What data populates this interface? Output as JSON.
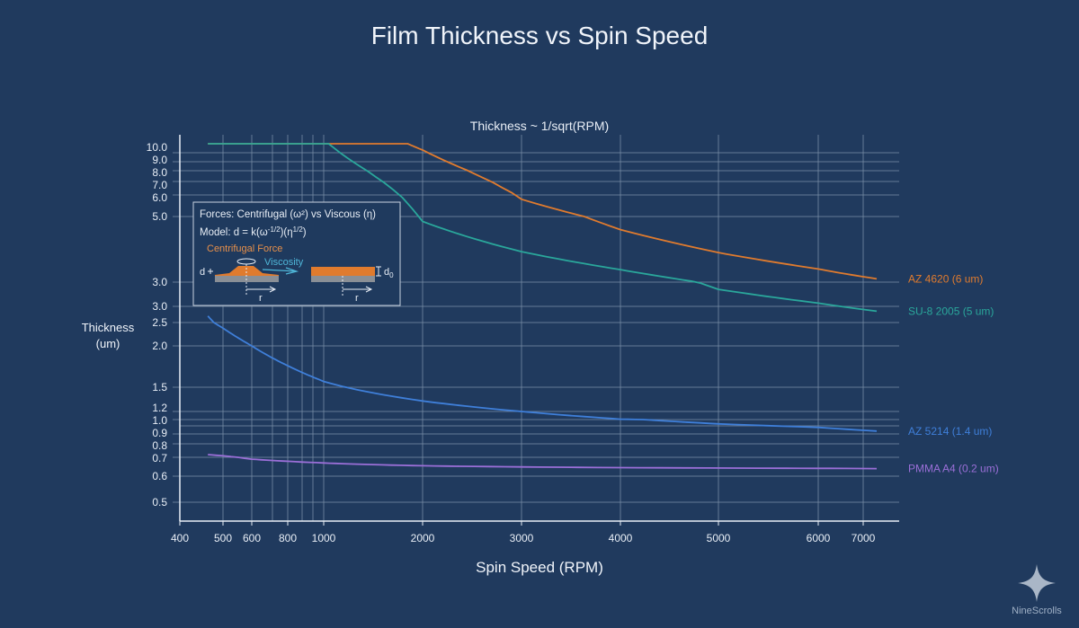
{
  "chart_data": {
    "type": "line",
    "title": "Film Thickness vs Spin Speed",
    "subtitle": "Thickness ~ 1/sqrt(RPM)",
    "xlabel": "Spin Speed (RPM)",
    "ylabel": "Thickness (um)",
    "x_scale": "log",
    "xlim": [
      400,
      7800
    ],
    "x_ticks": [
      "400",
      "500",
      "600",
      "800",
      "1000",
      "2000",
      "3000",
      "4000",
      "5000",
      "6000",
      "7000"
    ],
    "y_ticks": [
      "10.0",
      "9.0",
      "8.0",
      "7.0",
      "6.0",
      "5.0",
      "3.0",
      "3.0",
      "2.5",
      "2.0",
      "1.5",
      "1.2",
      "1.0",
      "0.9",
      "0.8",
      "0.7",
      "0.6",
      "0.5"
    ],
    "grid": true,
    "legend": "right, inline labels",
    "series": [
      {
        "name": "AZ 4620 (6 um)",
        "color": "#e07b2e",
        "x": [
          465,
          1000,
          1850,
          2000,
          3000,
          4000,
          5000,
          6000,
          7300
        ],
        "y": [
          11.0,
          11.0,
          11.0,
          10.3,
          5.8,
          4.6,
          3.9,
          3.4,
          3.1
        ]
      },
      {
        "name": "SU-8 2005 (5 um)",
        "color": "#2aa79b",
        "x": [
          465,
          1000,
          1050,
          2000,
          3000,
          4000,
          5000,
          6000,
          7300
        ],
        "y": [
          11.0,
          11.0,
          11.0,
          4.85,
          3.93,
          3.38,
          2.91,
          2.74,
          2.64
        ]
      },
      {
        "name": "AZ 5214 (1.4 um)",
        "color": "#3f7fd9",
        "x": [
          465,
          500,
          600,
          800,
          1000,
          2000,
          3000,
          4000,
          5000,
          7300
        ],
        "y": [
          2.58,
          2.38,
          2.0,
          1.76,
          1.57,
          1.33,
          1.2,
          1.01,
          0.97,
          0.92
        ]
      },
      {
        "name": "PMMA A4 (0.2 um)",
        "color": "#9b6fd8",
        "x": [
          465,
          600,
          1000,
          2000,
          4000,
          7300
        ],
        "y": [
          0.72,
          0.69,
          0.67,
          0.655,
          0.645,
          0.64
        ]
      }
    ]
  },
  "inset": {
    "line1": "Forces: Centrifugal (ω²) vs Viscous (η)",
    "line2_prefix": "Model: d = k(ω",
    "line2_exp1": "-1/2",
    "line2_mid": ")(η",
    "line2_exp2": "1/2",
    "line2_suffix": ")",
    "centrifugal_label": "Centrifugal Force",
    "viscosity_label": "Viscosity",
    "d_label": "d",
    "d0_label": "d",
    "d0_sub": "0",
    "r_label": "r",
    "colors": {
      "film": "#e07b2e",
      "substrate": "#8a8f96",
      "viscosity": "#4fb6d8"
    }
  },
  "watermark": {
    "text": "NineScrolls",
    "icon": "four-point-star-icon"
  }
}
